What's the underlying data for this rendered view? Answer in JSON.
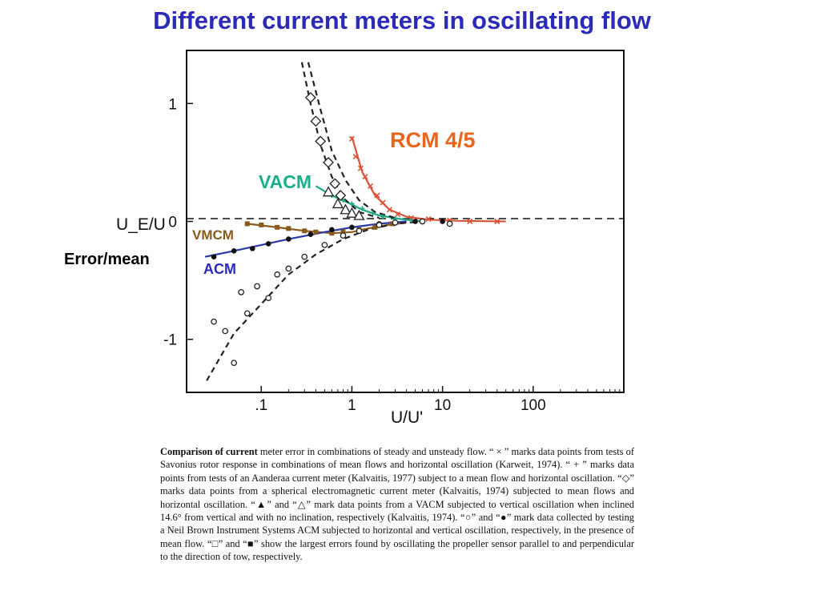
{
  "slide": {
    "title": "Different current meters in oscillating flow",
    "error_label": "Error/mean",
    "overlay_labels": {
      "rcm": "RCM 4/5",
      "vacm": "VACM",
      "vmcm": "VMCM",
      "acm": "ACM"
    }
  },
  "chart_data": {
    "type": "scatter",
    "xlabel": "U/U'",
    "ylabel": "U_E/U",
    "xscale": "log",
    "xlim": [
      0.015,
      1000
    ],
    "ylim": [
      -1.45,
      1.45
    ],
    "x_ticks": [
      ".1",
      "1",
      "10",
      "100"
    ],
    "x_tick_values": [
      0.1,
      1,
      10,
      100
    ],
    "y_ticks": [
      "1",
      "0",
      "-1"
    ],
    "y_tick_values": [
      1,
      0,
      -1
    ],
    "grid": false,
    "series": [
      {
        "name": "RCM 4/5",
        "marker": "x",
        "color": "#d9533a",
        "fit": [
          [
            1.0,
            0.72
          ],
          [
            1.3,
            0.42
          ],
          [
            1.8,
            0.22
          ],
          [
            2.6,
            0.1
          ],
          [
            4.0,
            0.04
          ],
          [
            7.0,
            0.015
          ],
          [
            15,
            0.005
          ],
          [
            50,
            0.0
          ]
        ],
        "values": [
          [
            1.0,
            0.7
          ],
          [
            1.1,
            0.55
          ],
          [
            1.25,
            0.45
          ],
          [
            1.4,
            0.38
          ],
          [
            1.6,
            0.3
          ],
          [
            1.9,
            0.22
          ],
          [
            2.2,
            0.16
          ],
          [
            2.6,
            0.1
          ],
          [
            3.2,
            0.06
          ],
          [
            4.5,
            0.03
          ],
          [
            7,
            0.02
          ],
          [
            12,
            0.01
          ],
          [
            20,
            0.0
          ],
          [
            40,
            0.0
          ]
        ]
      },
      {
        "name": "VACM",
        "marker": "+",
        "color": "#1aa884",
        "fit": [
          [
            0.4,
            0.3
          ],
          [
            0.6,
            0.22
          ],
          [
            0.9,
            0.16
          ],
          [
            1.3,
            0.1
          ],
          [
            2.0,
            0.05
          ],
          [
            3.5,
            0.02
          ],
          [
            6.0,
            0.0
          ]
        ],
        "values": [
          [
            0.6,
            0.22
          ],
          [
            0.8,
            0.18
          ],
          [
            1.0,
            0.15
          ],
          [
            1.3,
            0.11
          ],
          [
            1.7,
            0.07
          ],
          [
            2.2,
            0.04
          ],
          [
            3.0,
            0.02
          ],
          [
            4.5,
            0.01
          ]
        ]
      },
      {
        "name": "VMCM",
        "marker": "square",
        "color": "#8a5a1c",
        "fit": [
          [
            0.07,
            -0.02
          ],
          [
            0.15,
            -0.05
          ],
          [
            0.3,
            -0.08
          ],
          [
            0.6,
            -0.1
          ],
          [
            1.0,
            -0.09
          ],
          [
            1.5,
            -0.06
          ],
          [
            2.5,
            -0.03
          ],
          [
            4.0,
            -0.01
          ]
        ],
        "values": [
          [
            0.07,
            -0.02
          ],
          [
            0.1,
            -0.03
          ],
          [
            0.15,
            -0.05
          ],
          [
            0.2,
            -0.06
          ],
          [
            0.3,
            -0.08
          ],
          [
            0.4,
            -0.09
          ],
          [
            0.6,
            -0.1
          ],
          [
            0.8,
            -0.09
          ],
          [
            1.2,
            -0.07
          ],
          [
            1.8,
            -0.05
          ],
          [
            2.8,
            -0.02
          ]
        ]
      },
      {
        "name": "ACM",
        "marker": "filled-circle",
        "color": "#2b3aa8",
        "fit": [
          [
            0.024,
            -0.3
          ],
          [
            0.05,
            -0.25
          ],
          [
            0.1,
            -0.2
          ],
          [
            0.2,
            -0.15
          ],
          [
            0.5,
            -0.09
          ],
          [
            1.0,
            -0.05
          ],
          [
            2.0,
            -0.02
          ],
          [
            4.0,
            0.0
          ]
        ],
        "values": [
          [
            0.03,
            -0.3
          ],
          [
            0.05,
            -0.25
          ],
          [
            0.08,
            -0.23
          ],
          [
            0.12,
            -0.19
          ],
          [
            0.2,
            -0.15
          ],
          [
            0.35,
            -0.11
          ],
          [
            0.6,
            -0.07
          ],
          [
            1.0,
            -0.05
          ],
          [
            2.0,
            -0.02
          ],
          [
            5,
            0.0
          ],
          [
            10,
            0.0
          ]
        ]
      },
      {
        "name": "",
        "marker": "open-circle",
        "color": "#222222",
        "fit": [
          [
            0.025,
            -1.35
          ],
          [
            0.05,
            -0.95
          ],
          [
            0.1,
            -0.7
          ],
          [
            0.2,
            -0.45
          ],
          [
            0.4,
            -0.28
          ],
          [
            0.8,
            -0.15
          ],
          [
            1.5,
            -0.07
          ],
          [
            3.0,
            -0.02
          ],
          [
            6.0,
            0.0
          ]
        ],
        "values": [
          [
            0.03,
            -0.85
          ],
          [
            0.04,
            -0.93
          ],
          [
            0.05,
            -1.2
          ],
          [
            0.06,
            -0.6
          ],
          [
            0.07,
            -0.78
          ],
          [
            0.09,
            -0.55
          ],
          [
            0.12,
            -0.65
          ],
          [
            0.15,
            -0.45
          ],
          [
            0.2,
            -0.4
          ],
          [
            0.3,
            -0.3
          ],
          [
            0.5,
            -0.2
          ],
          [
            0.8,
            -0.12
          ],
          [
            1.2,
            -0.08
          ],
          [
            2.0,
            -0.03
          ],
          [
            3.0,
            -0.01
          ],
          [
            6,
            0.0
          ],
          [
            12,
            -0.02
          ]
        ]
      },
      {
        "name": "",
        "marker": "diamond",
        "color": "#222222",
        "fit": [
          [
            0.28,
            1.35
          ],
          [
            0.35,
            1.0
          ],
          [
            0.45,
            0.65
          ],
          [
            0.6,
            0.38
          ],
          [
            0.8,
            0.2
          ],
          [
            1.2,
            0.08
          ],
          [
            2.0,
            0.03
          ]
        ],
        "values": [
          [
            0.35,
            1.05
          ],
          [
            0.4,
            0.85
          ],
          [
            0.45,
            0.68
          ],
          [
            0.55,
            0.5
          ],
          [
            0.65,
            0.32
          ],
          [
            0.75,
            0.22
          ]
        ]
      },
      {
        "name": "",
        "marker": "open-triangle",
        "color": "#222222",
        "fit": [
          [
            0.33,
            1.35
          ],
          [
            0.45,
            0.95
          ],
          [
            0.6,
            0.6
          ],
          [
            0.85,
            0.35
          ],
          [
            1.2,
            0.18
          ],
          [
            1.8,
            0.08
          ],
          [
            3.0,
            0.03
          ]
        ],
        "values": [
          [
            0.55,
            0.25
          ],
          [
            0.7,
            0.15
          ],
          [
            0.85,
            0.1
          ],
          [
            1.0,
            0.07
          ],
          [
            1.2,
            0.05
          ]
        ]
      }
    ]
  },
  "caption": {
    "lead": "Comparison of current",
    "text": " meter error in combinations of steady and unsteady flow. “ × ” marks data points from tests of Savonius rotor response in combinations of mean flows and horizontal oscillation (Karweit, 1974). “ + ” marks data points from tests of an Aanderaa current meter (Kalvaitis, 1977) subject to a mean flow and horizontal oscillation. “◇” marks data points from a spherical electromagnetic current meter (Kalvaitis, 1974) subjected to mean flows and horizontal oscillation. “▲” and “△” mark data points from a VACM subjected to vertical oscillation when inclined 14.6° from vertical and with no inclination, respectively (Kalvaitis, 1974). “○” and “●” mark data collected by testing a Neil Brown Instrument Systems ACM subjected to horizontal and vertical oscillation, respectively, in the presence of mean flow. “□” and “■” show the largest errors found by oscillating the propeller sensor parallel to and perpendicular to the direction of tow, respectively."
  }
}
